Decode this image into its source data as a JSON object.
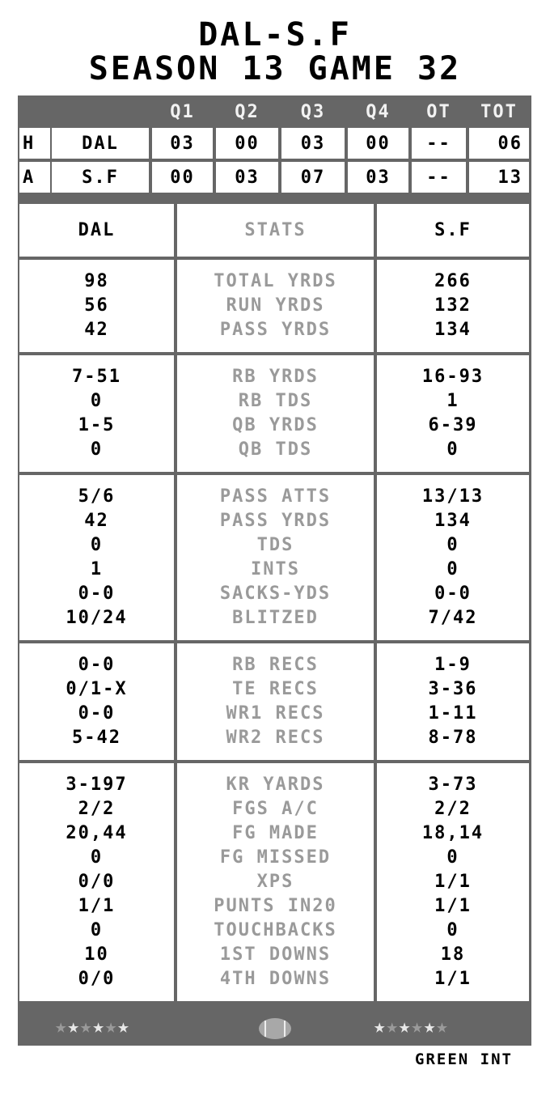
{
  "title_line1": "DAL-S.F",
  "title_line2": "SEASON 13 GAME 32",
  "scoreboard": {
    "headers": [
      "Q1",
      "Q2",
      "Q3",
      "Q4",
      "OT",
      "TOT"
    ],
    "rows": [
      {
        "side": "H",
        "team": "DAL",
        "scores": [
          "03",
          "00",
          "03",
          "00",
          "--",
          "06"
        ]
      },
      {
        "side": "A",
        "team": "S.F",
        "scores": [
          "00",
          "03",
          "07",
          "03",
          "--",
          "13"
        ]
      }
    ]
  },
  "stats": {
    "home_team": "DAL",
    "header": "STATS",
    "away_team": "S.F",
    "sections": [
      {
        "labels": [
          "TOTAL YRDS",
          "RUN YRDS",
          "PASS YRDS"
        ],
        "home": [
          "98",
          "56",
          "42"
        ],
        "away": [
          "266",
          "132",
          "134"
        ]
      },
      {
        "labels": [
          "RB YRDS",
          "RB TDS",
          "QB YRDS",
          "QB TDS"
        ],
        "home": [
          "7-51",
          "0",
          "1-5",
          "0"
        ],
        "away": [
          "16-93",
          "1",
          "6-39",
          "0"
        ]
      },
      {
        "labels": [
          "PASS ATTS",
          "PASS YRDS",
          "TDS",
          "INTS",
          "SACKS-YDS",
          "BLITZED"
        ],
        "home": [
          "5/6",
          "42",
          "0",
          "1",
          "0-0",
          "10/24"
        ],
        "away": [
          "13/13",
          "134",
          "0",
          "0",
          "0-0",
          "7/42"
        ]
      },
      {
        "labels": [
          "RB RECS",
          "TE RECS",
          "WR1 RECS",
          "WR2 RECS"
        ],
        "home": [
          "0-0",
          "0/1-X",
          "0-0",
          "5-42"
        ],
        "away": [
          "1-9",
          "3-36",
          "1-11",
          "8-78"
        ]
      },
      {
        "labels": [
          "KR YARDS",
          "FGS A/C",
          "FG MADE",
          "FG MISSED",
          "XPS",
          "PUNTS IN20",
          "TOUCHBACKS",
          "1ST DOWNS",
          "4TH DOWNS"
        ],
        "home": [
          "3-197",
          "2/2",
          "20,44",
          "0",
          "0/0",
          "1/1",
          "0",
          "10",
          "0/0"
        ],
        "away": [
          "3-73",
          "2/2",
          "18,14",
          "0",
          "1/1",
          "1/1",
          "0",
          "18",
          "1/1"
        ]
      }
    ]
  },
  "footer_bar": {
    "left_stars": [
      0,
      1,
      0,
      1,
      0,
      1
    ],
    "right_stars": [
      1,
      0,
      1,
      0,
      1,
      0
    ],
    "icon": "football-icon"
  },
  "footer_text": "GREEN INT",
  "colors": {
    "frame": "#666666",
    "label": "#9a9a9a",
    "cell": "#ffffff"
  }
}
